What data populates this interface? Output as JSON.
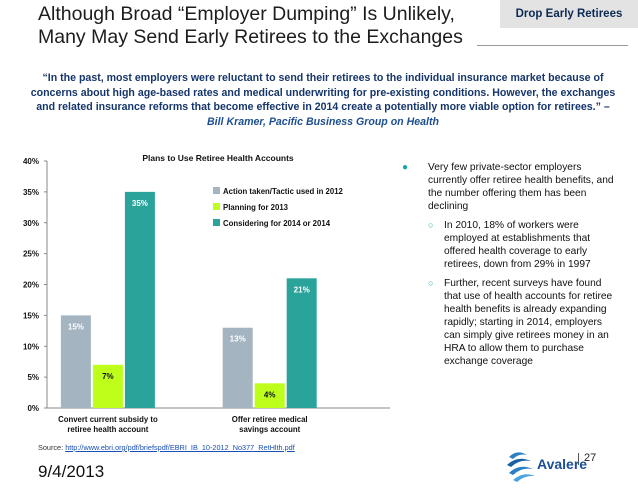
{
  "header": {
    "title_line1": "Although Broad “Employer Dumping” Is Unlikely,",
    "title_line2": "Many May Send Early Retirees to the Exchanges",
    "section_tag": "Drop Early Retirees"
  },
  "quote": {
    "text": "“In the past, most employers were reluctant to send their retirees to the individual insurance market because of concerns about high age-based rates and medical underwriting for pre-existing conditions. However, the exchanges and related insurance reforms that become effective in 2014 create a potentially more viable option for retirees.”",
    "separator": "–",
    "attribution": "Bill Kramer, Pacific Business Group on Health"
  },
  "chart_data": {
    "type": "bar",
    "title": "Plans to Use Retiree Health Accounts",
    "categories": [
      "Convert current subsidy to retiree health account",
      "Offer retiree medical savings account"
    ],
    "series": [
      {
        "name": "Action taken/Tactic used in 2012",
        "values": [
          15,
          13
        ],
        "labels": [
          "15%",
          "13%"
        ],
        "color": "#a5b4c1"
      },
      {
        "name": "Planning for 2013",
        "values": [
          7,
          4
        ],
        "labels": [
          "7%",
          "4%"
        ],
        "color": "#bdff1b"
      },
      {
        "name": "Considering for 2014 or 2014",
        "values": [
          35,
          21
        ],
        "labels": [
          "35%",
          "21%"
        ],
        "color": "#2aa39b"
      }
    ],
    "ylim": [
      0,
      40
    ],
    "yticks": [
      "0%",
      "5%",
      "10%",
      "15%",
      "20%",
      "25%",
      "30%",
      "35%",
      "40%"
    ],
    "xlabel": "",
    "ylabel": "",
    "legend": "top-right"
  },
  "bullets": {
    "main": "Very few private-sector employers currently offer retiree health benefits, and the number offering them has been declining",
    "subs": [
      "In 2010, 18% of workers were employed at establishments that offered health  coverage to early retirees, down from 29%  in 1997",
      "Further, recent surveys have found that use of health accounts for retiree health benefits is already expanding rapidly; starting in 2014, employers can simply give retirees money in an HRA to allow them to purchase exchange coverage"
    ]
  },
  "footer": {
    "source_label": "Source:",
    "source_url": "http://www.ebri.org/pdf/briefspdf/EBRI_IB_10-2012_No377_RetHlth.pdf",
    "date": "9/4/2013",
    "logo_text": "Avalere",
    "page_number": "27"
  },
  "colors": {
    "brand_navy": "#0c2a55",
    "quote_blue": "#16366b",
    "teal": "#2aa39b",
    "gray_bar": "#a5b4c1",
    "lime": "#bdff1b"
  }
}
